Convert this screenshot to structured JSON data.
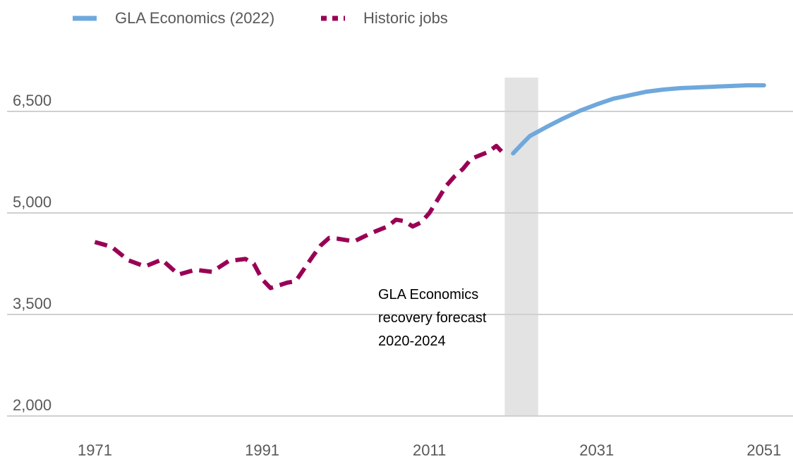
{
  "chart_data": {
    "type": "line",
    "xlim": [
      1960.5,
      2054.3
    ],
    "ylim": [
      2000,
      7000
    ],
    "xticks": [
      1971,
      1991,
      2011,
      2031,
      2051
    ],
    "yticks": [
      {
        "value": 2000,
        "label": "2,000"
      },
      {
        "value": 3500,
        "label": "3,500"
      },
      {
        "value": 5000,
        "label": "5,000"
      },
      {
        "value": 6500,
        "label": "6,500"
      }
    ],
    "grid": true,
    "legend": "top",
    "shade": {
      "x0": 2020,
      "x1": 2024,
      "color": "#e3e3e3"
    },
    "annotation": [
      "GLA Economics",
      "recovery forecast",
      "2020-2024"
    ],
    "series": [
      {
        "name": "GLA Economics (2022)",
        "color": "#6fa8dc",
        "style": "solid",
        "x": [
          2021,
          2022,
          2023,
          2025,
          2027,
          2029,
          2031,
          2033,
          2035,
          2037,
          2039,
          2041,
          2043,
          2045,
          2047,
          2049,
          2051
        ],
        "values": [
          5880,
          6010,
          6135,
          6270,
          6396,
          6510,
          6604,
          6688,
          6740,
          6792,
          6823,
          6844,
          6854,
          6865,
          6875,
          6885,
          6885
        ]
      },
      {
        "name": "Historic jobs",
        "color": "#990055",
        "style": "dashed",
        "x": [
          1971,
          1973,
          1975,
          1977,
          1979,
          1981,
          1983,
          1985,
          1987,
          1989,
          1990,
          1991,
          1992,
          1994,
          1995,
          1997,
          1998,
          1999,
          2000,
          2002,
          2004,
          2006,
          2007,
          2008,
          2009,
          2010,
          2011,
          2012,
          2013,
          2014,
          2015,
          2016,
          2017,
          2018,
          2019,
          2020
        ],
        "values": [
          4570,
          4500,
          4300,
          4210,
          4310,
          4090,
          4160,
          4130,
          4290,
          4320,
          4250,
          4020,
          3890,
          3970,
          3990,
          4350,
          4520,
          4630,
          4620,
          4580,
          4700,
          4800,
          4900,
          4880,
          4800,
          4860,
          5000,
          5200,
          5400,
          5540,
          5650,
          5800,
          5850,
          5900,
          5990,
          5860
        ]
      }
    ]
  }
}
